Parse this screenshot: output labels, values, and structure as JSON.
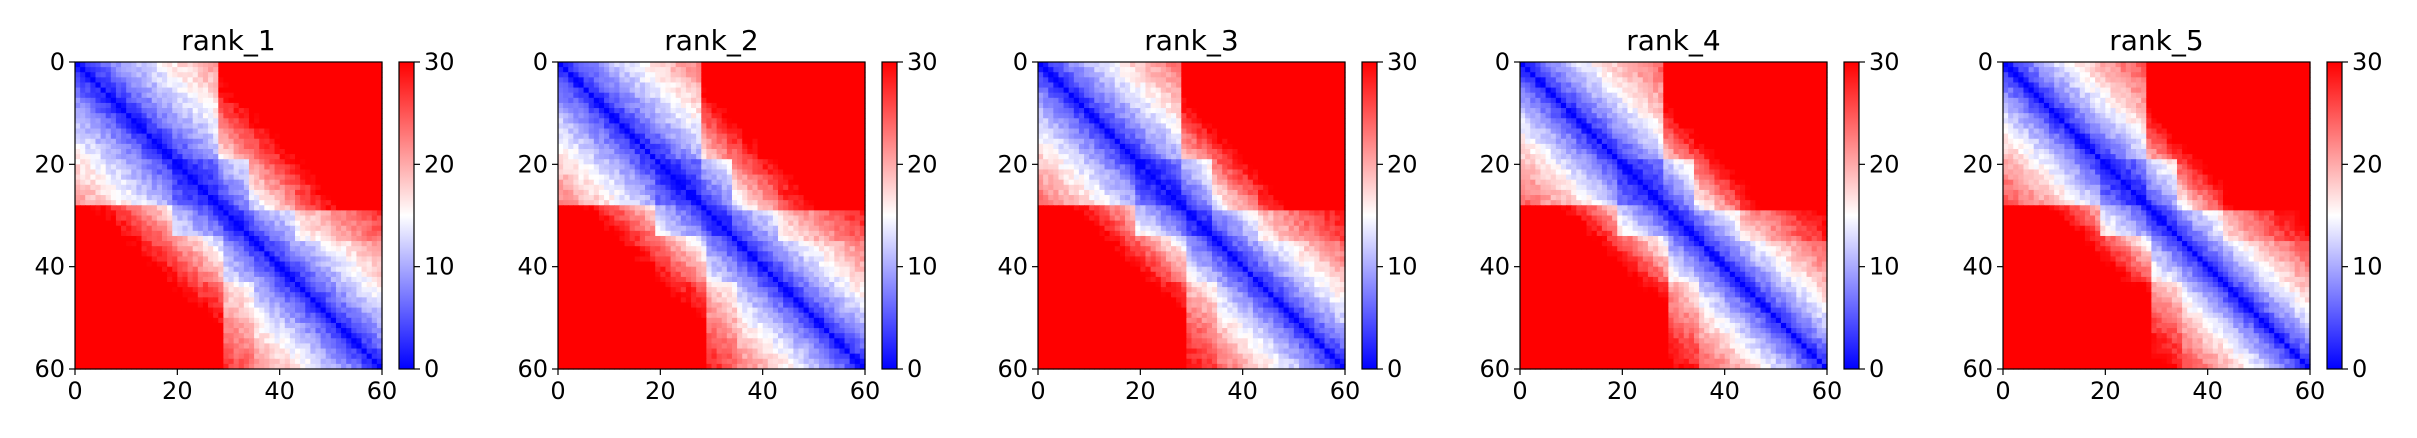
{
  "chart_data": [
    {
      "type": "heatmap",
      "title": "rank_1",
      "x_ticks": [
        "0",
        "20",
        "40",
        "60"
      ],
      "y_ticks": [
        "0",
        "20",
        "40",
        "60"
      ],
      "colorbar_ticks": [
        "0",
        "10",
        "20",
        "30"
      ],
      "vlim": [
        0,
        30
      ],
      "grid_size": 60,
      "cmap": "bwr",
      "description_values": {
        "diagonal": 0,
        "near_band": 8,
        "far_corner": 30
      }
    },
    {
      "type": "heatmap",
      "title": "rank_2",
      "x_ticks": [
        "0",
        "20",
        "40",
        "60"
      ],
      "y_ticks": [
        "0",
        "20",
        "40",
        "60"
      ],
      "colorbar_ticks": [
        "0",
        "10",
        "20",
        "30"
      ],
      "vlim": [
        0,
        30
      ],
      "grid_size": 60,
      "cmap": "bwr",
      "description_values": {
        "diagonal": 0,
        "near_band": 8,
        "far_corner": 30
      }
    },
    {
      "type": "heatmap",
      "title": "rank_3",
      "x_ticks": [
        "0",
        "20",
        "40",
        "60"
      ],
      "y_ticks": [
        "0",
        "20",
        "40",
        "60"
      ],
      "colorbar_ticks": [
        "0",
        "10",
        "20",
        "30"
      ],
      "vlim": [
        0,
        30
      ],
      "grid_size": 60,
      "cmap": "bwr",
      "description_values": {
        "diagonal": 0,
        "near_band": 8,
        "far_corner": 30
      }
    },
    {
      "type": "heatmap",
      "title": "rank_4",
      "x_ticks": [
        "0",
        "20",
        "40",
        "60"
      ],
      "y_ticks": [
        "0",
        "20",
        "40",
        "60"
      ],
      "colorbar_ticks": [
        "0",
        "10",
        "20",
        "30"
      ],
      "vlim": [
        0,
        30
      ],
      "grid_size": 60,
      "cmap": "bwr",
      "description_values": {
        "diagonal": 0,
        "near_band": 8,
        "far_corner": 30
      }
    },
    {
      "type": "heatmap",
      "title": "rank_5",
      "x_ticks": [
        "0",
        "20",
        "40",
        "60"
      ],
      "y_ticks": [
        "0",
        "20",
        "40",
        "60"
      ],
      "colorbar_ticks": [
        "0",
        "10",
        "20",
        "30"
      ],
      "vlim": [
        0,
        30
      ],
      "grid_size": 60,
      "cmap": "bwr",
      "description_values": {
        "diagonal": 0,
        "near_band": 8,
        "far_corner": 30
      }
    }
  ],
  "colors": {
    "low": "#0000ff",
    "mid": "#ffffff",
    "high": "#ff0000"
  }
}
